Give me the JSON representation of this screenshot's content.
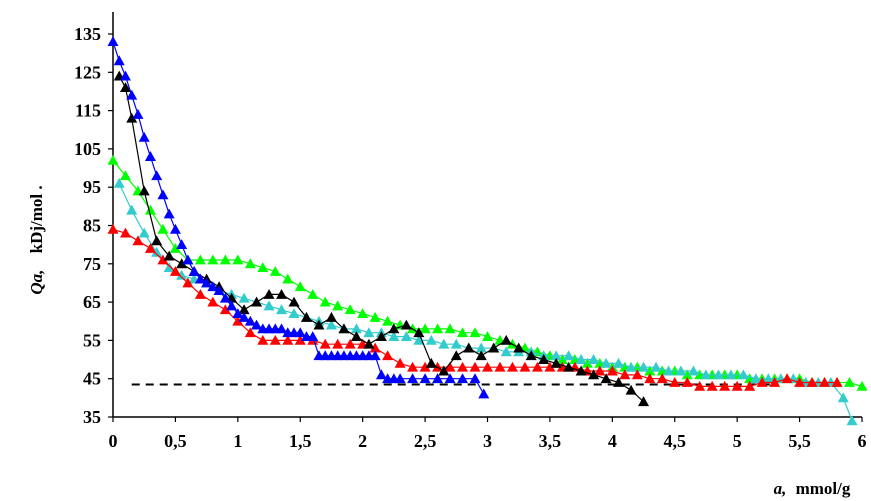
{
  "chart_data": {
    "type": "line",
    "xlabel_var": "a,",
    "xlabel_unit": "mmol/g",
    "ylabel_var": "Qa,",
    "ylabel_unit": "kDj/mol .",
    "xlim": [
      0,
      6
    ],
    "ylim": [
      35,
      138
    ],
    "x_ticks": [
      "0",
      "0,5",
      "1",
      "1,5",
      "2",
      "2,5",
      "3",
      "3,5",
      "4",
      "4,5",
      "5",
      "5,5",
      "6"
    ],
    "y_ticks": [
      "35",
      "45",
      "55",
      "65",
      "75",
      "85",
      "95",
      "105",
      "115",
      "125",
      "135"
    ],
    "grid": false,
    "reference_line": {
      "style": "dashed",
      "color": "#000000",
      "x": [
        0.15,
        5.3
      ],
      "y": 43.5
    },
    "series": [
      {
        "color": "#0000ff",
        "marker": "triangle",
        "x": [
          0.0,
          0.05,
          0.1,
          0.15,
          0.2,
          0.25,
          0.3,
          0.35,
          0.4,
          0.45,
          0.5,
          0.55,
          0.6,
          0.65,
          0.7,
          0.75,
          0.8,
          0.85,
          0.9,
          0.95,
          1.0,
          1.05,
          1.1,
          1.15,
          1.2,
          1.25,
          1.3,
          1.35,
          1.4,
          1.45,
          1.5,
          1.55,
          1.6,
          1.65,
          1.7,
          1.75,
          1.8,
          1.85,
          1.9,
          1.95,
          2.0,
          2.05,
          2.1,
          2.15,
          2.2,
          2.25,
          2.3,
          2.4,
          2.5,
          2.6,
          2.7,
          2.8,
          2.9,
          2.97
        ],
        "y": [
          133,
          128,
          124,
          119,
          114,
          108,
          103,
          98,
          93,
          88,
          84,
          80,
          76,
          73,
          71,
          70,
          69,
          68,
          66,
          64,
          62,
          61,
          60,
          59,
          58,
          58,
          58,
          58,
          57,
          57,
          57,
          56,
          56,
          51,
          51,
          51,
          51,
          51,
          51,
          51,
          51,
          51,
          51,
          46,
          45,
          45,
          45,
          45,
          45,
          45,
          45,
          45,
          45,
          41
        ]
      },
      {
        "color": "#000000",
        "marker": "triangle",
        "x": [
          0.05,
          0.1,
          0.15,
          0.25,
          0.35,
          0.45,
          0.55,
          0.65,
          0.75,
          0.85,
          0.95,
          1.05,
          1.15,
          1.25,
          1.35,
          1.45,
          1.55,
          1.65,
          1.75,
          1.85,
          1.95,
          2.05,
          2.15,
          2.25,
          2.35,
          2.45,
          2.55,
          2.65,
          2.75,
          2.85,
          2.95,
          3.05,
          3.15,
          3.25,
          3.35,
          3.45,
          3.55,
          3.65,
          3.75,
          3.85,
          3.95,
          4.05,
          4.15,
          4.25
        ],
        "y": [
          124,
          121,
          113,
          94,
          81,
          77,
          75,
          73,
          71,
          69,
          66,
          63,
          65,
          67,
          67,
          65,
          61,
          59,
          61,
          58,
          56,
          54,
          56,
          58,
          59,
          57,
          49,
          47,
          51,
          53,
          51,
          53,
          55,
          53,
          51,
          50,
          49,
          48,
          47,
          46,
          45,
          44,
          42,
          39
        ]
      },
      {
        "color": "#ff0000",
        "marker": "triangle",
        "x": [
          0.0,
          0.1,
          0.2,
          0.3,
          0.4,
          0.5,
          0.6,
          0.7,
          0.8,
          0.9,
          1.0,
          1.1,
          1.2,
          1.3,
          1.4,
          1.5,
          1.6,
          1.7,
          1.8,
          1.9,
          2.0,
          2.1,
          2.2,
          2.3,
          2.4,
          2.5,
          2.6,
          2.7,
          2.8,
          2.9,
          3.0,
          3.1,
          3.2,
          3.3,
          3.4,
          3.5,
          3.6,
          3.7,
          3.8,
          3.9,
          4.0,
          4.1,
          4.2,
          4.3,
          4.4,
          4.5,
          4.6,
          4.7,
          4.8,
          4.9,
          5.0,
          5.1,
          5.2,
          5.3,
          5.4,
          5.5,
          5.6,
          5.7,
          5.8
        ],
        "y": [
          84,
          83,
          81,
          79,
          76,
          73,
          70,
          67,
          65,
          63,
          60,
          57,
          55,
          55,
          55,
          55,
          55,
          54,
          54,
          54,
          54,
          53,
          51,
          49,
          48,
          48,
          48,
          48,
          48,
          48,
          48,
          48,
          48,
          48,
          48,
          48,
          48,
          48,
          47,
          47,
          47,
          46,
          46,
          45,
          45,
          44,
          44,
          43,
          43,
          43,
          43,
          43,
          44,
          44,
          45,
          44,
          44,
          44,
          44
        ]
      },
      {
        "color": "#00ff00",
        "marker": "triangle",
        "x": [
          0.0,
          0.1,
          0.2,
          0.3,
          0.4,
          0.5,
          0.6,
          0.7,
          0.8,
          0.9,
          1.0,
          1.1,
          1.2,
          1.3,
          1.4,
          1.5,
          1.6,
          1.7,
          1.8,
          1.9,
          2.0,
          2.1,
          2.2,
          2.3,
          2.4,
          2.5,
          2.6,
          2.7,
          2.8,
          2.9,
          3.0,
          3.1,
          3.2,
          3.3,
          3.4,
          3.5,
          3.6,
          3.7,
          3.8,
          3.9,
          4.0,
          4.1,
          4.2,
          4.3,
          4.4,
          4.5,
          4.6,
          4.7,
          4.8,
          4.9,
          5.0,
          5.1,
          5.2,
          5.3,
          5.4,
          5.5,
          5.6,
          5.7,
          5.8,
          5.9,
          6.0
        ],
        "y": [
          102,
          98,
          94,
          89,
          84,
          79,
          76,
          76,
          76,
          76,
          76,
          75,
          74,
          73,
          71,
          69,
          67,
          65,
          64,
          63,
          62,
          61,
          60,
          59,
          58,
          58,
          58,
          58,
          57,
          57,
          56,
          55,
          54,
          53,
          52,
          51,
          50,
          50,
          49,
          49,
          48,
          48,
          48,
          47,
          47,
          47,
          46,
          46,
          46,
          46,
          46,
          45,
          45,
          45,
          45,
          45,
          44,
          44,
          44,
          44,
          43
        ]
      },
      {
        "color": "#33cccc",
        "marker": "triangle",
        "x": [
          0.05,
          0.15,
          0.25,
          0.35,
          0.45,
          0.55,
          0.65,
          0.75,
          0.85,
          0.95,
          1.05,
          1.15,
          1.25,
          1.35,
          1.45,
          1.55,
          1.65,
          1.75,
          1.85,
          1.95,
          2.05,
          2.15,
          2.25,
          2.35,
          2.45,
          2.55,
          2.65,
          2.75,
          2.85,
          2.95,
          3.05,
          3.15,
          3.25,
          3.35,
          3.45,
          3.55,
          3.65,
          3.75,
          3.85,
          3.95,
          4.05,
          4.15,
          4.25,
          4.35,
          4.45,
          4.55,
          4.65,
          4.75,
          4.85,
          4.95,
          5.05,
          5.15,
          5.25,
          5.35,
          5.45,
          5.55,
          5.65,
          5.75,
          5.85,
          5.92
        ],
        "y": [
          96,
          89,
          83,
          78,
          74,
          72,
          71,
          70,
          68,
          67,
          66,
          65,
          64,
          63,
          62,
          61,
          60,
          59,
          58,
          58,
          57,
          57,
          56,
          56,
          55,
          55,
          54,
          54,
          53,
          53,
          53,
          52,
          52,
          52,
          51,
          51,
          51,
          50,
          50,
          49,
          49,
          48,
          48,
          48,
          47,
          47,
          47,
          46,
          46,
          46,
          46,
          45,
          45,
          45,
          45,
          44,
          44,
          44,
          40,
          34
        ]
      }
    ]
  }
}
